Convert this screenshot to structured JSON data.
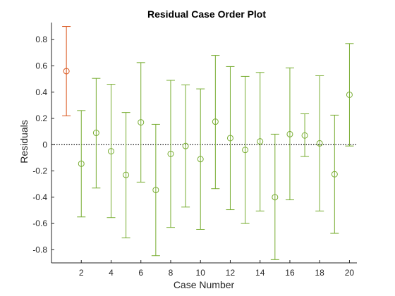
{
  "chart_data": {
    "type": "scatter",
    "title": "Residual Case Order Plot",
    "xlabel": "Case Number",
    "ylabel": "Residuals",
    "xlim": [
      0,
      20.5
    ],
    "ylim": [
      -0.9,
      0.93
    ],
    "xticks": [
      2,
      4,
      6,
      8,
      10,
      12,
      14,
      16,
      18,
      20
    ],
    "yticks": [
      -0.8,
      -0.6,
      -0.4,
      -0.2,
      0,
      0.2,
      0.4,
      0.6,
      0.8
    ],
    "reference_line": 0,
    "grid": false,
    "colors": {
      "normal": "#77AC30",
      "outlier": "#D95319",
      "zero_line": "#262626",
      "axis": "#262626"
    },
    "points": [
      {
        "case": 1,
        "residual": 0.56,
        "lower": 0.22,
        "upper": 0.9,
        "outlier": true
      },
      {
        "case": 2,
        "residual": -0.145,
        "lower": -0.55,
        "upper": 0.26,
        "outlier": false
      },
      {
        "case": 3,
        "residual": 0.09,
        "lower": -0.33,
        "upper": 0.505,
        "outlier": false
      },
      {
        "case": 4,
        "residual": -0.05,
        "lower": -0.555,
        "upper": 0.46,
        "outlier": false
      },
      {
        "case": 5,
        "residual": -0.23,
        "lower": -0.71,
        "upper": 0.245,
        "outlier": false
      },
      {
        "case": 6,
        "residual": 0.17,
        "lower": -0.285,
        "upper": 0.625,
        "outlier": false
      },
      {
        "case": 7,
        "residual": -0.345,
        "lower": -0.845,
        "upper": 0.155,
        "outlier": false
      },
      {
        "case": 8,
        "residual": -0.07,
        "lower": -0.63,
        "upper": 0.49,
        "outlier": false
      },
      {
        "case": 9,
        "residual": -0.01,
        "lower": -0.475,
        "upper": 0.455,
        "outlier": false
      },
      {
        "case": 10,
        "residual": -0.11,
        "lower": -0.645,
        "upper": 0.425,
        "outlier": false
      },
      {
        "case": 11,
        "residual": 0.175,
        "lower": -0.335,
        "upper": 0.68,
        "outlier": false
      },
      {
        "case": 12,
        "residual": 0.05,
        "lower": -0.495,
        "upper": 0.595,
        "outlier": false
      },
      {
        "case": 13,
        "residual": -0.04,
        "lower": -0.6,
        "upper": 0.52,
        "outlier": false
      },
      {
        "case": 14,
        "residual": 0.025,
        "lower": -0.505,
        "upper": 0.55,
        "outlier": false
      },
      {
        "case": 15,
        "residual": -0.4,
        "lower": -0.875,
        "upper": 0.08,
        "outlier": false
      },
      {
        "case": 16,
        "residual": 0.08,
        "lower": -0.42,
        "upper": 0.585,
        "outlier": false
      },
      {
        "case": 17,
        "residual": 0.07,
        "lower": -0.09,
        "upper": 0.235,
        "outlier": false
      },
      {
        "case": 18,
        "residual": 0.01,
        "lower": -0.505,
        "upper": 0.525,
        "outlier": false
      },
      {
        "case": 19,
        "residual": -0.225,
        "lower": -0.675,
        "upper": 0.225,
        "outlier": false
      },
      {
        "case": 20,
        "residual": 0.38,
        "lower": -0.01,
        "upper": 0.77,
        "outlier": false
      }
    ]
  }
}
